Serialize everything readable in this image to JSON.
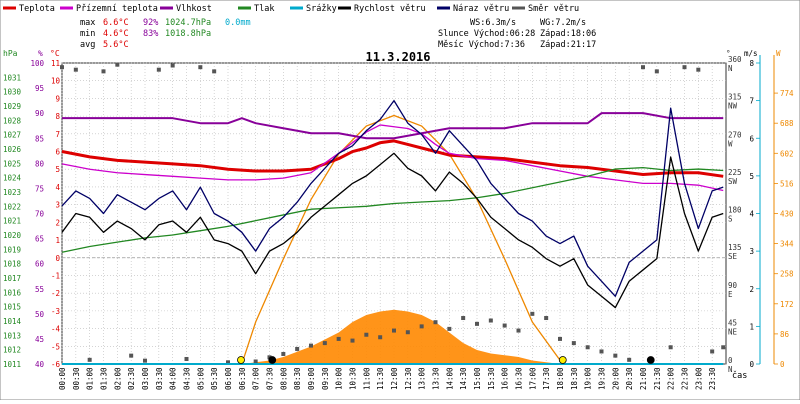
{
  "legend": [
    {
      "label": "Teplota",
      "color": "#dd0000"
    },
    {
      "label": "Přízemní teplota",
      "color": "#cc00cc"
    },
    {
      "label": "Vlhkost",
      "color": "#880099"
    },
    {
      "label": "Tlak",
      "color": "#228822"
    },
    {
      "label": "Srážky",
      "color": "#00aacc"
    },
    {
      "label": "Rychlost větru",
      "color": "#000000"
    },
    {
      "label": "Náraz větru",
      "color": "#000066"
    },
    {
      "label": "Směr větru",
      "color": "#555555"
    }
  ],
  "stats": {
    "max_label": "max",
    "min_label": "min",
    "avg_label": "avg",
    "max_temp": "6.6°C",
    "max_hum": "92%",
    "max_press": "1024.7hPa",
    "max_rain": "0.0mm",
    "min_temp": "4.6°C",
    "min_hum": "83%",
    "min_press": "1018.8hPa",
    "avg_temp": "5.6°C"
  },
  "wind_stats": {
    "ws": "WS:6.3m/s",
    "wg": "WG:7.2m/s",
    "sun": "Slunce Východ:06:28",
    "sun_set": "Západ:18:06",
    "moon": "Měsíc  Východ:7:36",
    "moon_set": "Západ:21:17"
  },
  "chart_data": {
    "type": "line",
    "title": "11.3.2016",
    "xlabel": "čas",
    "x_ticks": [
      "00:00",
      "00:30",
      "01:00",
      "01:30",
      "02:00",
      "02:30",
      "03:00",
      "03:30",
      "04:00",
      "04:30",
      "05:00",
      "05:30",
      "06:00",
      "06:30",
      "07:00",
      "07:30",
      "08:00",
      "08:30",
      "09:00",
      "09:30",
      "10:00",
      "10:30",
      "11:00",
      "11:30",
      "12:00",
      "12:30",
      "13:00",
      "13:30",
      "14:00",
      "14:30",
      "15:00",
      "15:30",
      "16:00",
      "16:30",
      "17:00",
      "17:30",
      "18:00",
      "18:30",
      "19:00",
      "19:30",
      "20:00",
      "20:30",
      "21:00",
      "21:30",
      "22:00",
      "22:30",
      "23:00",
      "23:30"
    ],
    "axes": {
      "hpa": {
        "label": "hPa",
        "range": [
          1011,
          1032
        ],
        "color": "#228822",
        "ticks": [
          1011,
          1012,
          1013,
          1014,
          1015,
          1016,
          1017,
          1018,
          1019,
          1020,
          1021,
          1022,
          1023,
          1024,
          1025,
          1026,
          1027,
          1028,
          1029,
          1030,
          1031
        ]
      },
      "percent": {
        "label": "%",
        "range": [
          40,
          100
        ],
        "color": "#880099",
        "ticks": [
          40,
          45,
          50,
          55,
          60,
          65,
          70,
          75,
          80,
          85,
          90,
          95,
          100
        ]
      },
      "celsius": {
        "label": "°C",
        "range": [
          -6,
          11
        ],
        "color": "#dd0000",
        "ticks": [
          -6,
          -5,
          -4,
          -3,
          -2,
          -1,
          0,
          1,
          2,
          3,
          4,
          5,
          6,
          7,
          8,
          9,
          10,
          11
        ]
      },
      "direction": {
        "label": "°",
        "range": [
          0,
          360
        ],
        "ticks": [
          {
            "v": 0,
            "deg": "0",
            "dir": "N"
          },
          {
            "v": 45,
            "deg": "45",
            "dir": "NE"
          },
          {
            "v": 90,
            "deg": "90",
            "dir": "E"
          },
          {
            "v": 135,
            "deg": "135",
            "dir": "SE"
          },
          {
            "v": 180,
            "deg": "180",
            "dir": "S"
          },
          {
            "v": 225,
            "deg": "225",
            "dir": "SW"
          },
          {
            "v": 270,
            "deg": "270",
            "dir": "W"
          },
          {
            "v": 315,
            "deg": "315",
            "dir": "NW"
          },
          {
            "v": 360,
            "deg": "360",
            "dir": "N"
          }
        ]
      },
      "ms": {
        "label": "m/s",
        "range": [
          0,
          8
        ],
        "color": "#00aacc",
        "ticks": [
          0,
          1,
          2,
          3,
          4,
          5,
          6,
          7,
          8
        ]
      },
      "wm2": {
        "label": "W",
        "range": [
          0,
          860
        ],
        "color": "#ee8800",
        "ticks": [
          0,
          86,
          172,
          258,
          344,
          430,
          516,
          602,
          688,
          774
        ]
      }
    },
    "series": [
      {
        "name": "Teplota",
        "axis": "celsius",
        "color": "#dd0000",
        "x": [
          0,
          1,
          2,
          3,
          4,
          5,
          6,
          7,
          8,
          9,
          10,
          10.5,
          11,
          11.5,
          12,
          12.5,
          13,
          14,
          15,
          16,
          17,
          18,
          19,
          20,
          21,
          22,
          23,
          23.9
        ],
        "y": [
          6.0,
          5.7,
          5.5,
          5.4,
          5.3,
          5.2,
          5.0,
          4.9,
          4.9,
          5.0,
          5.6,
          6.0,
          6.2,
          6.5,
          6.6,
          6.4,
          6.2,
          5.8,
          5.7,
          5.6,
          5.4,
          5.2,
          5.1,
          4.9,
          4.7,
          4.8,
          4.8,
          4.6
        ]
      },
      {
        "name": "Přízemní teplota",
        "axis": "celsius",
        "color": "#cc00cc",
        "x": [
          0,
          1,
          2,
          3,
          4,
          5,
          6,
          7,
          8,
          9,
          10,
          10.5,
          11,
          11.5,
          12,
          12.5,
          13,
          13.5,
          14,
          15,
          16,
          17,
          18,
          19,
          20,
          21,
          22,
          23,
          23.9
        ],
        "y": [
          5.3,
          5.0,
          4.8,
          4.7,
          4.6,
          4.5,
          4.4,
          4.4,
          4.5,
          4.8,
          5.9,
          6.5,
          7.1,
          7.5,
          7.4,
          7.3,
          7.0,
          6.4,
          5.9,
          5.6,
          5.5,
          5.2,
          4.9,
          4.6,
          4.4,
          4.2,
          4.2,
          4.1,
          3.8
        ]
      },
      {
        "name": "Vlhkost",
        "axis": "percent",
        "color": "#880099",
        "x": [
          0,
          1,
          2,
          3,
          4,
          5,
          6,
          6.5,
          7,
          8,
          9,
          10,
          11,
          12,
          13,
          14,
          15,
          16,
          17,
          18,
          19,
          19.5,
          20,
          21,
          22,
          23,
          23.9
        ],
        "y": [
          89,
          89,
          89,
          89,
          89,
          88,
          88,
          89,
          88,
          87,
          86,
          86,
          85,
          85,
          86,
          87,
          87,
          87,
          88,
          88,
          88,
          90,
          90,
          90,
          89,
          89,
          89
        ]
      },
      {
        "name": "Tlak",
        "axis": "hpa",
        "color": "#228822",
        "x": [
          0,
          1,
          2,
          3,
          4,
          5,
          6,
          7,
          8,
          9,
          10,
          11,
          12,
          13,
          14,
          15,
          16,
          17,
          18,
          19,
          20,
          21,
          22,
          23,
          23.9
        ],
        "y": [
          1018.8,
          1019.2,
          1019.5,
          1019.8,
          1020.0,
          1020.3,
          1020.6,
          1021.0,
          1021.4,
          1021.8,
          1021.9,
          1022.0,
          1022.2,
          1022.3,
          1022.4,
          1022.6,
          1022.9,
          1023.3,
          1023.7,
          1024.1,
          1024.6,
          1024.7,
          1024.5,
          1024.6,
          1024.5
        ]
      },
      {
        "name": "Rychlost větru",
        "axis": "ms",
        "color": "#000000",
        "x": [
          0,
          0.5,
          1,
          1.5,
          2,
          2.5,
          3,
          3.5,
          4,
          4.5,
          5,
          5.5,
          6,
          6.5,
          7,
          7.5,
          8,
          8.5,
          9,
          9.5,
          10,
          10.5,
          11,
          11.5,
          12,
          12.5,
          13,
          13.5,
          14,
          14.5,
          15,
          15.5,
          16,
          16.5,
          17,
          17.5,
          18,
          18.5,
          19,
          19.5,
          20,
          20.5,
          21,
          21.5,
          22,
          22.5,
          23,
          23.5,
          23.9
        ],
        "y": [
          3.5,
          4.0,
          3.9,
          3.5,
          3.8,
          3.6,
          3.3,
          3.7,
          3.8,
          3.5,
          3.9,
          3.3,
          3.2,
          3.0,
          2.4,
          3.0,
          3.2,
          3.5,
          3.9,
          4.2,
          4.5,
          4.8,
          5.0,
          5.3,
          5.6,
          5.2,
          5.0,
          4.6,
          5.1,
          4.8,
          4.4,
          3.9,
          3.6,
          3.3,
          3.1,
          2.8,
          2.6,
          2.8,
          2.1,
          1.8,
          1.5,
          2.2,
          2.5,
          2.8,
          5.5,
          4.0,
          3.0,
          3.9,
          4.0
        ]
      },
      {
        "name": "Náraz větru",
        "axis": "ms",
        "color": "#000066",
        "x": [
          0,
          0.5,
          1,
          1.5,
          2,
          2.5,
          3,
          3.5,
          4,
          4.5,
          5,
          5.5,
          6,
          6.5,
          7,
          7.5,
          8,
          8.5,
          9,
          9.5,
          10,
          10.5,
          11,
          11.5,
          12,
          12.5,
          13,
          13.5,
          14,
          14.5,
          15,
          15.5,
          16,
          16.5,
          17,
          17.5,
          18,
          18.5,
          19,
          19.5,
          20,
          20.5,
          21,
          21.5,
          22,
          22.5,
          23,
          23.5,
          23.9
        ],
        "y": [
          4.2,
          4.6,
          4.4,
          4.0,
          4.5,
          4.3,
          4.1,
          4.4,
          4.6,
          4.1,
          4.7,
          4.0,
          3.8,
          3.5,
          3.0,
          3.6,
          3.9,
          4.3,
          4.8,
          5.2,
          5.6,
          5.8,
          6.2,
          6.5,
          7.0,
          6.4,
          6.1,
          5.6,
          6.2,
          5.8,
          5.4,
          4.8,
          4.4,
          4.0,
          3.8,
          3.4,
          3.2,
          3.4,
          2.6,
          2.2,
          1.8,
          2.7,
          3.0,
          3.3,
          6.8,
          4.8,
          3.6,
          4.6,
          4.7
        ]
      },
      {
        "name": "Směr větru",
        "axis": "direction",
        "color": "#555555",
        "x": [
          0,
          0.5,
          1,
          1.5,
          2,
          2.5,
          3,
          3.5,
          4,
          4.5,
          5,
          5.5,
          6,
          6.5,
          7,
          7.5,
          8,
          8.5,
          9,
          9.5,
          10,
          10.5,
          11,
          11.5,
          12,
          12.5,
          13,
          13.5,
          14,
          14.5,
          15,
          15.5,
          16,
          16.5,
          17,
          17.5,
          18,
          18.5,
          19,
          19.5,
          20,
          20.5,
          21,
          21.5,
          22,
          22.5,
          23,
          23.5,
          23.9
        ],
        "y": [
          355,
          352,
          5,
          350,
          358,
          10,
          4,
          352,
          357,
          6,
          355,
          350,
          2,
          5,
          3,
          8,
          12,
          18,
          22,
          25,
          30,
          28,
          35,
          32,
          40,
          38,
          45,
          50,
          42,
          55,
          48,
          52,
          46,
          40,
          60,
          55,
          30,
          25,
          20,
          15,
          10,
          5,
          355,
          350,
          20,
          355,
          352,
          15,
          20
        ]
      },
      {
        "name": "Srážky",
        "axis": "ms",
        "color": "#00aacc",
        "x": [
          0,
          23.9
        ],
        "y": [
          0,
          0
        ]
      }
    ],
    "solar_estimate": {
      "axis": "wm2",
      "color": "#ee8800",
      "x": [
        6.5,
        7,
        8,
        9,
        10,
        11,
        12,
        13,
        14,
        15,
        16,
        17,
        18.1
      ],
      "y": [
        0,
        120,
        300,
        470,
        600,
        680,
        710,
        680,
        600,
        470,
        300,
        120,
        0
      ]
    },
    "solar_measured": {
      "axis": "wm2",
      "color": "#ff8800",
      "x": [
        6.5,
        7,
        7.5,
        8,
        8.5,
        9,
        9.5,
        10,
        10.5,
        11,
        11.5,
        12,
        12.5,
        13,
        13.5,
        14,
        14.5,
        15,
        15.5,
        16,
        16.5,
        17,
        17.5,
        18
      ],
      "y": [
        0,
        5,
        10,
        20,
        35,
        50,
        70,
        90,
        120,
        140,
        150,
        155,
        150,
        140,
        120,
        90,
        60,
        40,
        30,
        25,
        20,
        10,
        5,
        0
      ]
    },
    "markers": [
      {
        "type": "sunrise",
        "x": 6.47,
        "color": "#ffee00"
      },
      {
        "type": "moonrise",
        "x": 7.6,
        "color": "#000000"
      },
      {
        "type": "sunset",
        "x": 18.1,
        "color": "#ffee00"
      },
      {
        "type": "moonset",
        "x": 21.28,
        "color": "#000000"
      }
    ]
  }
}
